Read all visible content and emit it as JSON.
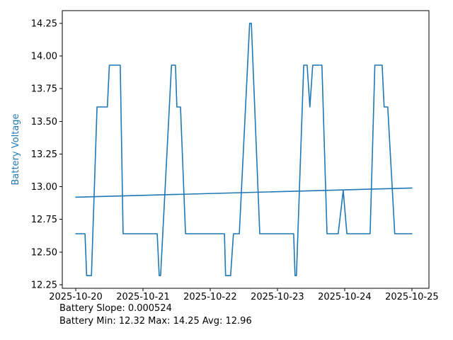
{
  "window": {
    "background": "#ffffff"
  },
  "footer": {
    "line1": "Battery Slope: 0.000524",
    "line2": "Battery Min: 12.32 Max: 14.25 Avg: 12.96"
  },
  "chart_data": {
    "type": "line",
    "title": "",
    "xlabel": "",
    "ylabel": "Battery Voltage",
    "x_unit": "hours since 2025-10-20 00:00",
    "xlim": [
      -4.8,
      126.1
    ],
    "ylim": [
      12.223,
      14.347
    ],
    "grid": false,
    "legend": false,
    "colors": {
      "series": "#1f77b4",
      "trend": "#1f77b4",
      "ylabel": "#1f77b4",
      "axis": "#000000",
      "tick_text": "#000000"
    },
    "x_ticks": [
      {
        "value": 0,
        "label": "2025-10-20"
      },
      {
        "value": 24,
        "label": "2025-10-21"
      },
      {
        "value": 48,
        "label": "2025-10-22"
      },
      {
        "value": 72,
        "label": "2025-10-23"
      },
      {
        "value": 96,
        "label": "2025-10-24"
      },
      {
        "value": 120,
        "label": "2025-10-25"
      }
    ],
    "y_ticks": [
      {
        "value": 12.25,
        "label": "12.25"
      },
      {
        "value": 12.5,
        "label": "12.50"
      },
      {
        "value": 12.75,
        "label": "12.75"
      },
      {
        "value": 13.0,
        "label": "13.00"
      },
      {
        "value": 13.25,
        "label": "13.25"
      },
      {
        "value": 13.5,
        "label": "13.50"
      },
      {
        "value": 13.75,
        "label": "13.75"
      },
      {
        "value": 14.0,
        "label": "14.00"
      },
      {
        "value": 14.25,
        "label": "14.25"
      }
    ],
    "series": [
      {
        "name": "battery-voltage",
        "points": [
          [
            0.0,
            12.64
          ],
          [
            3.3,
            12.64
          ],
          [
            3.9,
            12.32
          ],
          [
            5.6,
            12.32
          ],
          [
            7.6,
            13.61
          ],
          [
            11.3,
            13.61
          ],
          [
            12.0,
            13.93
          ],
          [
            15.9,
            13.93
          ],
          [
            16.9,
            12.64
          ],
          [
            29.1,
            12.64
          ],
          [
            29.8,
            12.32
          ],
          [
            30.3,
            12.32
          ],
          [
            34.2,
            13.93
          ],
          [
            35.6,
            13.93
          ],
          [
            36.1,
            13.61
          ],
          [
            37.4,
            13.61
          ],
          [
            39.2,
            12.64
          ],
          [
            53.1,
            12.64
          ],
          [
            53.5,
            12.32
          ],
          [
            55.3,
            12.32
          ],
          [
            56.3,
            12.64
          ],
          [
            58.4,
            12.64
          ],
          [
            62.1,
            14.25
          ],
          [
            62.7,
            14.25
          ],
          [
            65.7,
            12.64
          ],
          [
            77.8,
            12.64
          ],
          [
            78.3,
            12.32
          ],
          [
            78.8,
            12.32
          ],
          [
            81.4,
            13.93
          ],
          [
            82.6,
            13.93
          ],
          [
            83.6,
            13.61
          ],
          [
            84.6,
            13.93
          ],
          [
            87.9,
            13.93
          ],
          [
            89.7,
            12.64
          ],
          [
            93.7,
            12.64
          ],
          [
            95.5,
            12.97
          ],
          [
            96.8,
            12.64
          ],
          [
            105.1,
            12.64
          ],
          [
            106.8,
            13.93
          ],
          [
            109.4,
            13.93
          ],
          [
            110.1,
            13.61
          ],
          [
            111.4,
            13.61
          ],
          [
            113.9,
            12.64
          ],
          [
            120.0,
            12.64
          ]
        ]
      },
      {
        "name": "trend",
        "points": [
          [
            0.0,
            12.92
          ],
          [
            120.0,
            12.99
          ]
        ]
      }
    ]
  }
}
